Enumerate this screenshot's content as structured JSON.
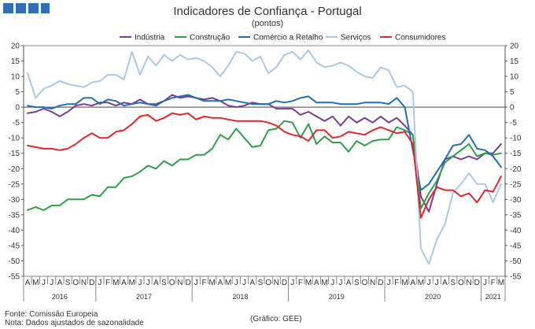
{
  "header": {
    "title": "Indicadores de Confiança - Portugal",
    "subtitle": "(pontos)"
  },
  "footer": {
    "source": "Fonte: Comissão Europeia",
    "note": "Nota: Dados ajustados de sazonalidade",
    "credit": "(Gráfico: GEE)"
  },
  "chart_data": {
    "type": "line",
    "title": "Indicadores de Confiança - Portugal",
    "ylabel": "(pontos)",
    "ylim": [
      -55,
      20
    ],
    "yticks": [
      20,
      15,
      10,
      5,
      0,
      -5,
      -10,
      -15,
      -20,
      -25,
      -30,
      -35,
      -40,
      -45,
      -50,
      -55
    ],
    "grid": false,
    "legend_position": "top",
    "start": "2016-04",
    "month_labels": [
      "A",
      "M",
      "J",
      "J",
      "A",
      "S",
      "O",
      "N",
      "D",
      "J",
      "F",
      "M",
      "A",
      "M",
      "J",
      "J",
      "A",
      "S",
      "O",
      "N",
      "D",
      "J",
      "F",
      "M",
      "A",
      "M",
      "J",
      "J",
      "A",
      "S",
      "O",
      "N",
      "D",
      "J",
      "F",
      "M",
      "A",
      "M",
      "J",
      "J",
      "A",
      "S",
      "O",
      "N",
      "D",
      "J",
      "F",
      "M",
      "A",
      "M",
      "J",
      "J",
      "A",
      "S",
      "O",
      "N",
      "D",
      "J",
      "F",
      "M"
    ],
    "year_labels": [
      {
        "label": "2016",
        "start_index": 0,
        "end_index": 8
      },
      {
        "label": "2017",
        "start_index": 9,
        "end_index": 20
      },
      {
        "label": "2018",
        "start_index": 21,
        "end_index": 32
      },
      {
        "label": "2019",
        "start_index": 33,
        "end_index": 44
      },
      {
        "label": "2020",
        "start_index": 45,
        "end_index": 56
      },
      {
        "label": "2021",
        "start_index": 57,
        "end_index": 59
      }
    ],
    "series": [
      {
        "name": "Indústria",
        "color": "#7a3b96",
        "values": [
          -2,
          -1.5,
          -0.5,
          -1.5,
          -3,
          -1.5,
          0.5,
          1,
          0.5,
          1.5,
          1.5,
          0.5,
          1.5,
          1,
          2.5,
          1,
          1,
          2,
          4,
          3,
          3.5,
          3,
          2.5,
          3,
          2,
          0.5,
          0,
          0.5,
          1.5,
          1,
          1,
          -0.5,
          -0.5,
          -0.5,
          -2.5,
          -1.5,
          -3,
          -4.5,
          -3,
          -6,
          -3,
          -5,
          -3.5,
          -5,
          -3,
          -5,
          -3.5,
          -6,
          -9,
          -29,
          -34,
          -25,
          -17,
          -16,
          -17,
          -16,
          -17,
          -15,
          -15,
          -12
        ]
      },
      {
        "name": "Construção",
        "color": "#2ba048",
        "values": [
          -33.5,
          -32.5,
          -33.5,
          -32,
          -32,
          -30,
          -30,
          -30,
          -28.5,
          -29,
          -26,
          -26,
          -23,
          -22.5,
          -21,
          -19,
          -20,
          -17.5,
          -19,
          -17,
          -17,
          -15.5,
          -15.5,
          -13.5,
          -9,
          -10.5,
          -7,
          -10,
          -13,
          -12.5,
          -7.5,
          -7,
          -4.5,
          -5,
          -10,
          -5.5,
          -12,
          -9.5,
          -11.5,
          -11.5,
          -14.5,
          -11,
          -12.5,
          -11,
          -10.5,
          -10.5,
          -6.5,
          -7.5,
          -9,
          -33,
          -28,
          -24,
          -18,
          -16,
          -14,
          -12,
          -16,
          -15,
          -15.5,
          -15
        ]
      },
      {
        "name": "Comércio a Retalho",
        "color": "#1f6fb4",
        "values": [
          0.5,
          0,
          0,
          -0.5,
          0.5,
          1,
          1,
          3,
          3,
          1,
          2.5,
          2,
          0.5,
          1,
          1.5,
          1,
          0.5,
          2,
          3,
          3.5,
          4,
          3,
          2,
          2,
          2,
          2.5,
          2,
          1.5,
          1,
          1,
          1,
          2,
          1.5,
          2,
          3,
          3.5,
          1.5,
          1.5,
          1.5,
          1,
          1,
          1,
          1.5,
          1.5,
          1.5,
          1,
          3,
          0,
          -14,
          -27,
          -25,
          -21,
          -17,
          -12.5,
          -12,
          -9,
          -13.5,
          -14,
          -16,
          -19.5
        ]
      },
      {
        "name": "Serviços",
        "color": "#a8c9ea",
        "values": [
          11,
          3,
          6,
          7,
          8.5,
          7.5,
          7,
          6.5,
          8,
          8.5,
          10.5,
          10.5,
          9,
          18,
          10.5,
          16.5,
          13.5,
          17,
          15,
          17,
          15.5,
          16,
          15,
          13,
          10,
          13.5,
          18,
          17.5,
          15,
          16.5,
          11,
          13,
          17,
          18,
          15.5,
          18.5,
          14.5,
          13,
          13.5,
          14.5,
          13.5,
          11.5,
          10,
          9.5,
          13,
          12,
          6.5,
          7,
          5,
          -46,
          -51,
          -43,
          -38,
          -28,
          -25,
          -21.5,
          -25,
          -25,
          -31,
          -25
        ]
      },
      {
        "name": "Consumidores",
        "color": "#e3262b",
        "values": [
          -12.5,
          -13,
          -13.5,
          -13.5,
          -14,
          -13.5,
          -12,
          -10,
          -8.5,
          -10,
          -10,
          -8,
          -7.5,
          -5.5,
          -3,
          -2.5,
          -4.5,
          -3.5,
          -2,
          -2.5,
          -2,
          -4,
          -3,
          -3.5,
          -3.5,
          -4,
          -4.5,
          -4.5,
          -4.5,
          -4.5,
          -5,
          -6,
          -8,
          -9,
          -9.5,
          -11,
          -7.5,
          -7.5,
          -10,
          -9.5,
          -8,
          -8.5,
          -9,
          -7.5,
          -6.5,
          -7.5,
          -8.5,
          -8,
          -12,
          -36,
          -30,
          -26,
          -27,
          -27,
          -29,
          -28,
          -31,
          -27,
          -27.5,
          -22.5
        ]
      }
    ]
  }
}
